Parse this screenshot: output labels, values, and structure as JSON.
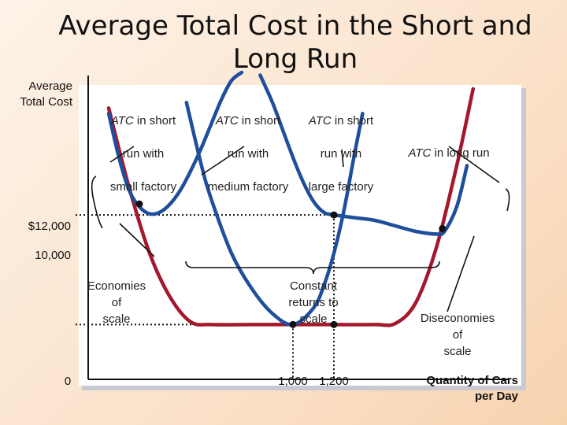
{
  "chart_data": {
    "type": "line",
    "title": "Average Total Cost in the Short and Long Run",
    "ylabel": "Average Total Cost",
    "xlabel": "Quantity of Cars per Day",
    "xlim": [
      0,
      2000
    ],
    "ylim": [
      9000,
      14600
    ],
    "y_ticks": [
      {
        "value": 12000,
        "label": "$12,000"
      },
      {
        "value": 10000,
        "label": "10,000"
      }
    ],
    "x_ticks": [
      {
        "value": 0,
        "label": "0"
      },
      {
        "value": 1000,
        "label": "1,000"
      },
      {
        "value": 1200,
        "label": "1,200"
      }
    ],
    "colors": {
      "short_run": "#1f4f9c",
      "long_run": "#a3182c"
    },
    "series": [
      {
        "name": "ATC in short run with small factory",
        "kind": "short_run",
        "x": [
          100,
          150,
          200,
          250,
          300,
          350,
          400,
          450,
          500,
          550,
          600,
          650,
          700,
          750
        ],
        "y": [
          13850,
          13050,
          12450,
          12150,
          12020,
          12050,
          12200,
          12450,
          12800,
          13200,
          13650,
          14100,
          14450,
          14600
        ]
      },
      {
        "name": "ATC in short run with medium factory",
        "kind": "short_run",
        "x": [
          480,
          550,
          600,
          700,
          800,
          900,
          1000,
          1100,
          1150,
          1200,
          1250,
          1300,
          1340
        ],
        "y": [
          14050,
          12950,
          12300,
          11300,
          10650,
          10200,
          10000,
          10300,
          10700,
          11300,
          12100,
          13100,
          13850
        ]
      },
      {
        "name": "ATC in short run with large factory",
        "kind": "short_run",
        "x": [
          840,
          900,
          950,
          1000,
          1050,
          1100,
          1150,
          1200,
          1300,
          1400,
          1500,
          1600,
          1700,
          1740,
          1800,
          1850
        ],
        "y": [
          14550,
          14050,
          13550,
          13050,
          12600,
          12250,
          12050,
          12000,
          11950,
          11900,
          11800,
          11700,
          11650,
          11700,
          12150,
          12900
        ]
      },
      {
        "name": "ATC in long run",
        "kind": "long_run",
        "x": [
          100,
          200,
          300,
          400,
          500,
          600,
          800,
          1000,
          1200,
          1400,
          1500,
          1600,
          1700,
          1800,
          1880
        ],
        "y": [
          13950,
          12500,
          11300,
          10500,
          10050,
          10000,
          10000,
          10000,
          10000,
          10000,
          10020,
          10400,
          11400,
          12900,
          14300
        ]
      }
    ],
    "points": [
      {
        "x": 250,
        "y": 12200
      },
      {
        "x": 1000,
        "y": 10000
      },
      {
        "x": 1200,
        "y": 12000
      },
      {
        "x": 1200,
        "y": 10000
      },
      {
        "x": 1730,
        "y": 11750
      }
    ],
    "labels": {
      "small": [
        "ATC",
        " in short",
        "run with",
        "small factory"
      ],
      "medium": [
        "ATC",
        " in short",
        "run with",
        "medium factory"
      ],
      "large": [
        "ATC",
        " in short",
        "run with",
        "large factory"
      ],
      "longrun": [
        "ATC",
        " in long run"
      ],
      "economies": "Economies\nof\nscale",
      "constant": "Constant\nreturns to\nscale",
      "diseconomies": "Diseconomies\nof\nscale"
    }
  }
}
